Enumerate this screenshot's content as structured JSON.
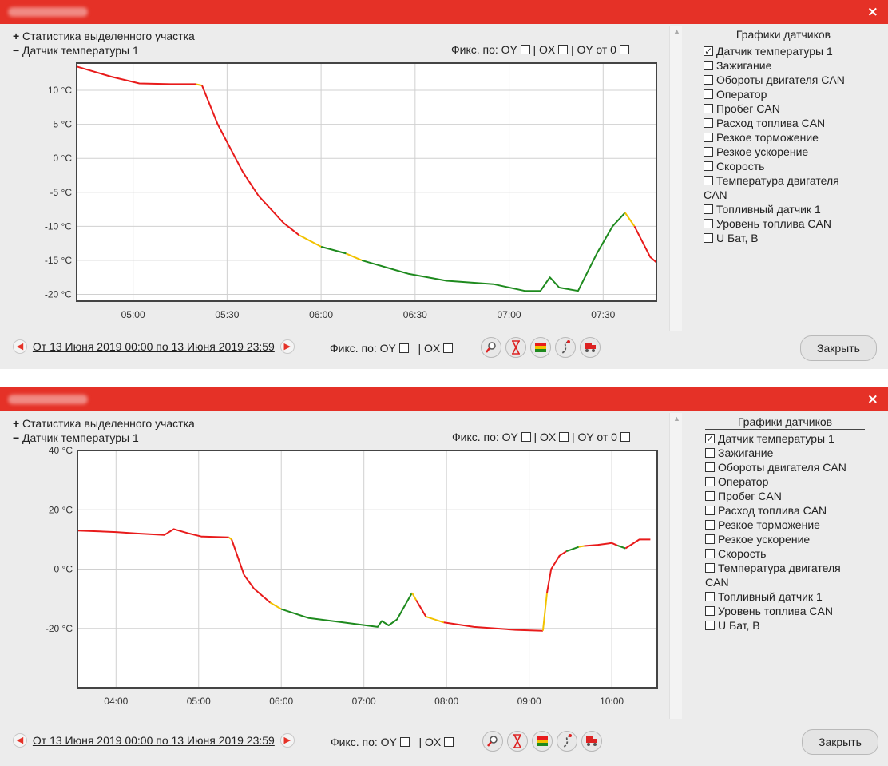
{
  "panels": [
    {
      "close_icon": "×",
      "stats_sign": "+",
      "stats_label": "Статистика выделенного участка",
      "sensor_sign": "−",
      "sensor_label": "Датчик температуры 1",
      "fix": {
        "label": "Фикс. по: OY",
        "ox": "| OX",
        "oy0": "| OY от 0"
      },
      "sensors_header": "Графики датчиков",
      "sensors": [
        {
          "label": "Датчик температуры 1",
          "checked": true
        },
        {
          "label": "Зажигание",
          "checked": false
        },
        {
          "label": "Обороты двигателя CAN",
          "checked": false
        },
        {
          "label": "Оператор",
          "checked": false
        },
        {
          "label": "Пробег CAN",
          "checked": false
        },
        {
          "label": "Расход топлива CAN",
          "checked": false
        },
        {
          "label": "Резкое торможение",
          "checked": false
        },
        {
          "label": "Резкое ускорение",
          "checked": false
        },
        {
          "label": "Скорость",
          "checked": false
        },
        {
          "label": "Температура двигателя",
          "label2": "CAN",
          "checked": false
        },
        {
          "label": "Топливный датчик 1",
          "checked": false
        },
        {
          "label": "Уровень топлива CAN",
          "checked": false
        },
        {
          "label": "U Бат, В",
          "checked": false
        }
      ],
      "period_link": "От 13 Июня 2019 00:00 по 13 Июня 2019 23:59",
      "bottom_fix": {
        "label": "Фикс. по: OY",
        "ox": "| OX"
      },
      "tools": [
        "zoom-icon",
        "hourglass-icon",
        "color-bars-icon",
        "route-icon",
        "truck-icon"
      ],
      "close_button": "Закрыть",
      "colors": {
        "high": "#e81b1b",
        "mid": "#f2c200",
        "low": "#1e8a1e"
      }
    },
    {
      "close_icon": "×",
      "stats_sign": "+",
      "stats_label": "Статистика выделенного участка",
      "sensor_sign": "−",
      "sensor_label": "Датчик температуры 1",
      "fix": {
        "label": "Фикс. по: OY",
        "ox": "| OX",
        "oy0": "| OY от 0"
      },
      "sensors_header": "Графики датчиков",
      "sensors": [
        {
          "label": "Датчик температуры 1",
          "checked": true
        },
        {
          "label": "Зажигание",
          "checked": false
        },
        {
          "label": "Обороты двигателя CAN",
          "checked": false
        },
        {
          "label": "Оператор",
          "checked": false
        },
        {
          "label": "Пробег CAN",
          "checked": false
        },
        {
          "label": "Расход топлива CAN",
          "checked": false
        },
        {
          "label": "Резкое торможение",
          "checked": false
        },
        {
          "label": "Резкое ускорение",
          "checked": false
        },
        {
          "label": "Скорость",
          "checked": false
        },
        {
          "label": "Температура двигателя",
          "label2": "CAN",
          "checked": false
        },
        {
          "label": "Топливный датчик 1",
          "checked": false
        },
        {
          "label": "Уровень топлива CAN",
          "checked": false
        },
        {
          "label": "U Бат, В",
          "checked": false
        }
      ],
      "period_link": "От 13 Июня 2019 00:00 по 13 Июня 2019 23:59",
      "bottom_fix": {
        "label": "Фикс. по: OY",
        "ox": "| OX"
      },
      "tools": [
        "zoom-icon",
        "hourglass-icon",
        "color-bars-icon",
        "route-icon",
        "truck-icon"
      ],
      "close_button": "Закрыть",
      "colors": {
        "high": "#e81b1b",
        "mid": "#f2c200",
        "low": "#1e8a1e"
      }
    }
  ],
  "chart_data": [
    {
      "type": "line",
      "title": "",
      "xlabel": "",
      "ylabel": "",
      "x_unit": "hh:mm",
      "xlim": [
        "04:42",
        "07:47"
      ],
      "ylim": [
        -21,
        14
      ],
      "x_ticks": [
        "05:00",
        "05:30",
        "06:00",
        "06:30",
        "07:00",
        "07:30"
      ],
      "y_ticks": [
        "10 °C",
        "5 °C",
        "0 °C",
        "-5 °C",
        "-10 °C",
        "-15 °C",
        "-20 °C"
      ],
      "y_tick_values": [
        10,
        5,
        0,
        -5,
        -10,
        -15,
        -20
      ],
      "grid": true,
      "series": [
        {
          "color": "red",
          "points": [
            [
              "04:42",
              13.5
            ],
            [
              "04:53",
              12
            ],
            [
              "05:02",
              11
            ],
            [
              "05:12",
              10.9
            ],
            [
              "05:20",
              10.9
            ]
          ]
        },
        {
          "color": "yellow",
          "points": [
            [
              "05:20",
              10.9
            ],
            [
              "05:22",
              10.7
            ]
          ]
        },
        {
          "color": "red",
          "points": [
            [
              "05:22",
              10.7
            ],
            [
              "05:27",
              5
            ],
            [
              "05:35",
              -2
            ],
            [
              "05:40",
              -5.5
            ],
            [
              "05:48",
              -9.5
            ],
            [
              "05:53",
              -11.3
            ]
          ]
        },
        {
          "color": "yellow",
          "points": [
            [
              "05:53",
              -11.3
            ],
            [
              "06:00",
              -13
            ]
          ]
        },
        {
          "color": "green",
          "points": [
            [
              "06:00",
              -13
            ],
            [
              "06:08",
              -14
            ]
          ]
        },
        {
          "color": "yellow",
          "points": [
            [
              "06:08",
              -14
            ],
            [
              "06:13",
              -15
            ]
          ]
        },
        {
          "color": "green",
          "points": [
            [
              "06:13",
              -15
            ],
            [
              "06:28",
              -17
            ],
            [
              "06:40",
              -18
            ],
            [
              "06:55",
              -18.5
            ],
            [
              "07:05",
              -19.5
            ],
            [
              "07:10",
              -19.5
            ],
            [
              "07:13",
              -17.5
            ],
            [
              "07:16",
              -19
            ],
            [
              "07:22",
              -19.5
            ],
            [
              "07:28",
              -14
            ],
            [
              "07:33",
              -10
            ],
            [
              "07:37",
              -8
            ]
          ]
        },
        {
          "color": "yellow",
          "points": [
            [
              "07:37",
              -8
            ],
            [
              "07:40",
              -10
            ]
          ]
        },
        {
          "color": "red",
          "points": [
            [
              "07:40",
              -10
            ],
            [
              "07:45",
              -14.5
            ],
            [
              "07:47",
              -15.3
            ]
          ]
        }
      ]
    },
    {
      "type": "line",
      "title": "",
      "xlabel": "",
      "ylabel": "",
      "x_unit": "hh:mm",
      "xlim": [
        "03:32",
        "10:33"
      ],
      "ylim": [
        -40,
        40
      ],
      "x_ticks": [
        "04:00",
        "05:00",
        "06:00",
        "07:00",
        "08:00",
        "09:00",
        "10:00"
      ],
      "y_ticks": [
        "40 °C",
        "20 °C",
        "0 °C",
        "-20 °C"
      ],
      "y_tick_values": [
        40,
        20,
        0,
        -20
      ],
      "grid": true,
      "series": [
        {
          "color": "red",
          "points": [
            [
              "03:32",
              13
            ],
            [
              "04:00",
              12.5
            ],
            [
              "04:15",
              12
            ],
            [
              "04:35",
              11.5
            ],
            [
              "04:42",
              13.5
            ],
            [
              "04:53",
              12
            ],
            [
              "05:02",
              11
            ],
            [
              "05:15",
              10.8
            ],
            [
              "05:22",
              10.7
            ]
          ]
        },
        {
          "color": "yellow",
          "points": [
            [
              "05:22",
              10.7
            ],
            [
              "05:24",
              10
            ]
          ]
        },
        {
          "color": "red",
          "points": [
            [
              "05:24",
              10
            ],
            [
              "05:33",
              -2
            ],
            [
              "05:40",
              -6.5
            ],
            [
              "05:52",
              -11.3
            ]
          ]
        },
        {
          "color": "yellow",
          "points": [
            [
              "05:52",
              -11.3
            ],
            [
              "06:00",
              -13.5
            ]
          ]
        },
        {
          "color": "green",
          "points": [
            [
              "06:00",
              -13.5
            ],
            [
              "06:20",
              -16.5
            ],
            [
              "06:45",
              -18
            ],
            [
              "07:10",
              -19.5
            ],
            [
              "07:13",
              -17.5
            ],
            [
              "07:18",
              -19
            ],
            [
              "07:24",
              -17
            ],
            [
              "07:35",
              -8
            ]
          ]
        },
        {
          "color": "yellow",
          "points": [
            [
              "07:35",
              -8
            ],
            [
              "07:38",
              -10.5
            ]
          ]
        },
        {
          "color": "red",
          "points": [
            [
              "07:38",
              -10.5
            ],
            [
              "07:45",
              -16
            ]
          ]
        },
        {
          "color": "yellow",
          "points": [
            [
              "07:45",
              -16
            ],
            [
              "07:58",
              -18
            ]
          ]
        },
        {
          "color": "red",
          "points": [
            [
              "07:58",
              -18
            ],
            [
              "08:20",
              -19.5
            ],
            [
              "08:50",
              -20.5
            ],
            [
              "09:10",
              -20.8
            ]
          ]
        },
        {
          "color": "yellow",
          "points": [
            [
              "09:10",
              -20.8
            ],
            [
              "09:13",
              -8
            ]
          ]
        },
        {
          "color": "red",
          "points": [
            [
              "09:13",
              -8
            ],
            [
              "09:16",
              0
            ],
            [
              "09:22",
              4.5
            ],
            [
              "09:27",
              6
            ]
          ]
        },
        {
          "color": "green",
          "points": [
            [
              "09:27",
              6
            ],
            [
              "09:36",
              7.5
            ]
          ]
        },
        {
          "color": "yellow",
          "points": [
            [
              "09:36",
              7.5
            ],
            [
              "09:40",
              7.8
            ]
          ]
        },
        {
          "color": "red",
          "points": [
            [
              "09:40",
              7.8
            ],
            [
              "09:50",
              8.2
            ],
            [
              "10:00",
              8.8
            ],
            [
              "10:04",
              8
            ]
          ]
        },
        {
          "color": "green",
          "points": [
            [
              "10:04",
              8
            ],
            [
              "10:10",
              7
            ]
          ]
        },
        {
          "color": "red",
          "points": [
            [
              "10:10",
              7
            ],
            [
              "10:20",
              10
            ],
            [
              "10:28",
              10
            ]
          ]
        }
      ]
    }
  ]
}
